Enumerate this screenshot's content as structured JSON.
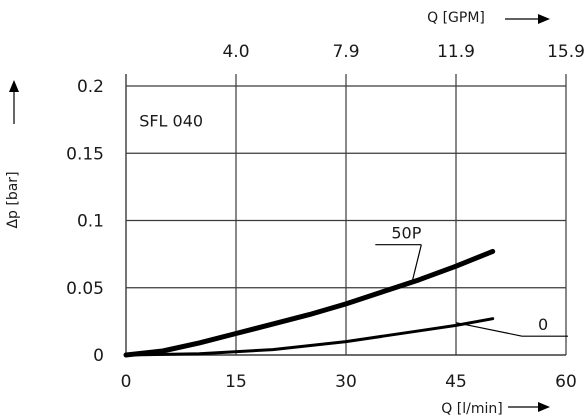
{
  "chart_data": {
    "type": "line",
    "annotation": "SFL 040",
    "xlabel": "Q [l/min]",
    "x2label": "Q [GPM]",
    "ylabel": "Δp [bar]",
    "xlim": [
      0,
      60
    ],
    "ylim": [
      0,
      0.2
    ],
    "grid": true,
    "x_ticks": [
      {
        "value": 0,
        "label": "0"
      },
      {
        "value": 15,
        "label": "15"
      },
      {
        "value": 30,
        "label": "30"
      },
      {
        "value": 45,
        "label": "45"
      },
      {
        "value": 60,
        "label": "60"
      }
    ],
    "x2_ticks": [
      {
        "value": 15,
        "label": "4.0"
      },
      {
        "value": 30,
        "label": "7.9"
      },
      {
        "value": 45,
        "label": "11.9"
      },
      {
        "value": 60,
        "label": "15.9"
      }
    ],
    "y_ticks": [
      {
        "value": 0,
        "label": "0"
      },
      {
        "value": 0.05,
        "label": "0.05"
      },
      {
        "value": 0.1,
        "label": "0.1"
      },
      {
        "value": 0.15,
        "label": "0.15"
      },
      {
        "value": 0.2,
        "label": "0.2"
      }
    ],
    "series": [
      {
        "name": "50P",
        "x": [
          0,
          5,
          10,
          15,
          20,
          25,
          30,
          35,
          40,
          45,
          50
        ],
        "y": [
          0,
          0.003,
          0.009,
          0.016,
          0.023,
          0.03,
          0.038,
          0.047,
          0.056,
          0.066,
          0.077
        ],
        "label_at": [
          34,
          0.082
        ]
      },
      {
        "name": "0",
        "x": [
          0,
          10,
          20,
          25,
          30,
          35,
          40,
          45,
          50
        ],
        "y": [
          0,
          0.001,
          0.004,
          0.007,
          0.01,
          0.014,
          0.018,
          0.022,
          0.027
        ],
        "label_at": [
          54,
          0.014
        ]
      }
    ]
  }
}
